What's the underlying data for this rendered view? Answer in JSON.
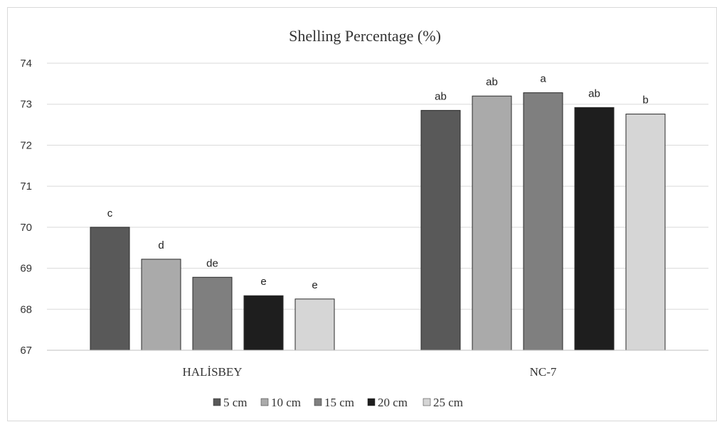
{
  "chart_data": {
    "type": "bar",
    "title": "Shelling Percentage (%)",
    "xlabel": "",
    "ylabel": "",
    "ylim": [
      67,
      74
    ],
    "yticks": [
      67,
      68,
      69,
      70,
      71,
      72,
      73,
      74
    ],
    "grid": true,
    "legend_position": "bottom",
    "categories": [
      "HALİSBEY",
      "NC-7"
    ],
    "series": [
      {
        "name": "5 cm",
        "color": "#595959",
        "values": [
          70.0,
          72.85
        ],
        "labels": [
          "c",
          "ab"
        ]
      },
      {
        "name": "10 cm",
        "color": "#aaaaaa",
        "values": [
          69.22,
          73.2
        ],
        "labels": [
          "d",
          "ab"
        ]
      },
      {
        "name": "15 cm",
        "color": "#7f7f7f",
        "values": [
          68.78,
          73.28
        ],
        "labels": [
          "de",
          "a"
        ]
      },
      {
        "name": "20 cm",
        "color": "#1e1e1e",
        "values": [
          68.33,
          72.92
        ],
        "labels": [
          "e",
          "ab"
        ]
      },
      {
        "name": "25 cm",
        "color": "#d6d6d6",
        "values": [
          68.25,
          72.76
        ],
        "labels": [
          "e",
          "b"
        ]
      }
    ]
  }
}
